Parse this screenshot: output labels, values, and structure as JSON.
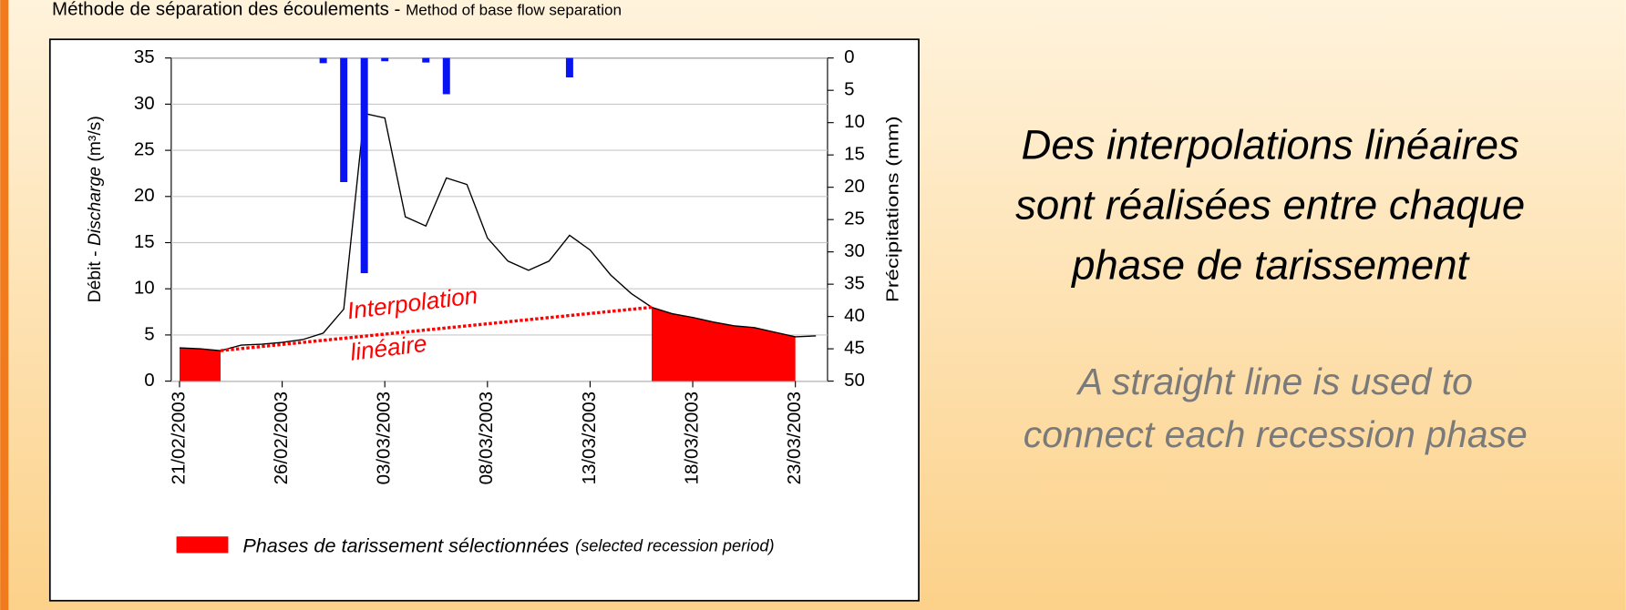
{
  "chart_data": {
    "type": "line",
    "title": "Méthode de séparation des écoulements - ",
    "subtitle": "Method of base flow separation",
    "ylabel": [
      "Débit - ",
      "Discharge",
      " (m³/s)"
    ],
    "y2label": "Précipitations (mm)",
    "categories": [
      "21/02/2003",
      null,
      null,
      null,
      null,
      "26/02/2003",
      null,
      null,
      null,
      null,
      "03/03/2003",
      null,
      null,
      null,
      null,
      "08/03/2003",
      null,
      null,
      null,
      null,
      "13/03/2003",
      null,
      null,
      null,
      null,
      "18/03/2003",
      null,
      null,
      null,
      null,
      "23/03/2003",
      null
    ],
    "ylim": [
      0,
      35
    ],
    "yticks": [
      0,
      5,
      10,
      15,
      20,
      25,
      30,
      35
    ],
    "y2lim": [
      0,
      50
    ],
    "y2ticks": [
      0,
      5,
      10,
      15,
      20,
      25,
      30,
      35,
      40,
      45,
      50
    ],
    "y2_inverted": true,
    "grid": true,
    "series": [
      {
        "name": "Débit",
        "type": "line",
        "color": "#000000",
        "values": [
          3.6,
          3.5,
          3.3,
          3.9,
          4.0,
          4.2,
          4.5,
          5.2,
          7.8,
          29,
          28.5,
          17.8,
          16.8,
          22,
          21.3,
          15.5,
          13,
          12,
          13,
          15.8,
          14.2,
          11.5,
          9.5,
          8,
          7.3,
          6.9,
          6.4,
          6.0,
          5.8,
          5.3,
          4.8,
          4.9
        ]
      },
      {
        "name": "Phases de tarissement sélectionnées",
        "name_en": "(selected recession period)",
        "type": "area",
        "color": "#ff0000",
        "values": [
          3.6,
          3.5,
          3.3,
          null,
          null,
          null,
          null,
          null,
          null,
          null,
          null,
          null,
          null,
          null,
          null,
          null,
          null,
          null,
          null,
          null,
          null,
          null,
          null,
          8,
          7.3,
          6.9,
          6.4,
          6.0,
          5.8,
          5.3,
          4.8,
          null
        ]
      },
      {
        "name": "Interpolation linéaire",
        "type": "interpolation",
        "color": "#ff0000",
        "values": [
          null,
          null,
          3.3,
          null,
          null,
          null,
          null,
          null,
          null,
          null,
          null,
          null,
          null,
          null,
          null,
          null,
          null,
          null,
          null,
          null,
          null,
          null,
          null,
          8,
          null,
          null,
          null,
          null,
          null,
          null,
          null,
          null
        ]
      },
      {
        "name": "Précipitations",
        "type": "bar",
        "axis": "y2",
        "color": "#0a14f0",
        "values": [
          null,
          null,
          null,
          null,
          null,
          null,
          null,
          0.8,
          19.2,
          33.3,
          0.5,
          null,
          0.7,
          5.6,
          null,
          null,
          null,
          null,
          null,
          3.0,
          null,
          null,
          null,
          null,
          null,
          null,
          null,
          null,
          null,
          null,
          null,
          null
        ]
      }
    ],
    "annotations": [
      "Interpolation",
      "linéaire"
    ]
  },
  "side_text": {
    "fr_lines": [
      "Des interpolations linéaires",
      "sont réalisées entre chaque",
      "phase de tarissement"
    ],
    "en_lines": [
      "A straight line is used to",
      "connect each recession phase"
    ]
  }
}
